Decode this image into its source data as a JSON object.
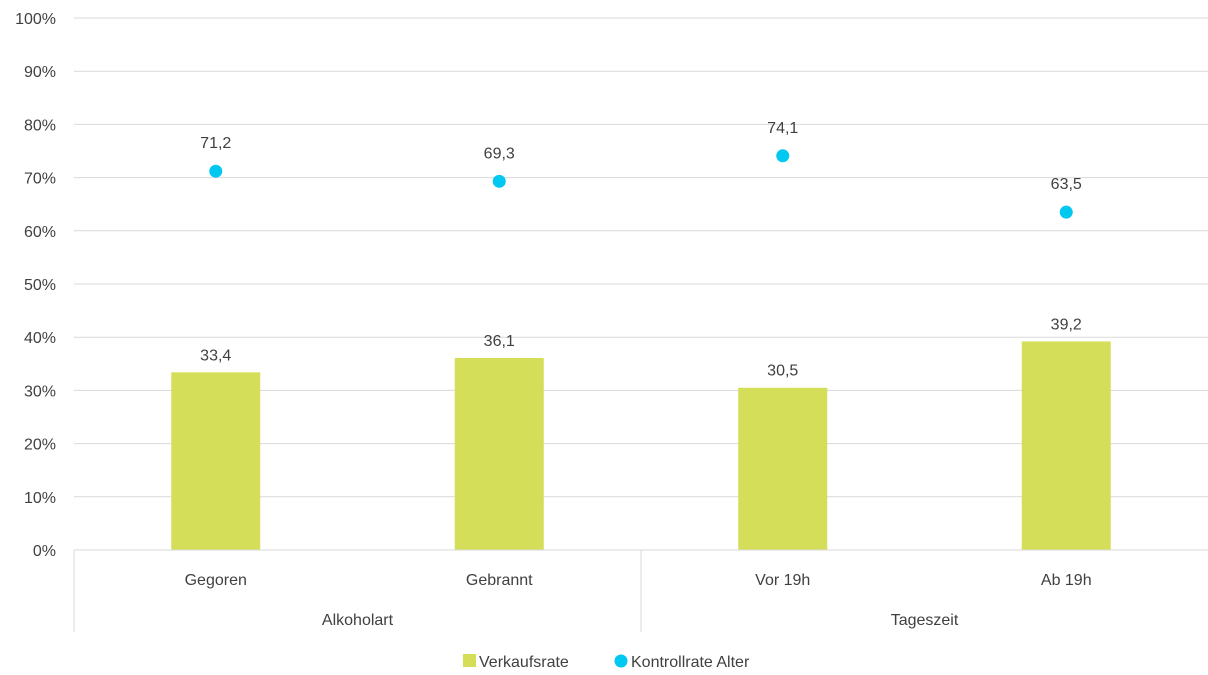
{
  "chart_data": {
    "type": "bar",
    "categories": [
      "Gegoren",
      "Gebrannt",
      "Vor 19h",
      "Ab 19h"
    ],
    "groups": [
      {
        "label": "Alkoholart",
        "categories": [
          "Gegoren",
          "Gebrannt"
        ]
      },
      {
        "label": "Tageszeit",
        "categories": [
          "Vor 19h",
          "Ab 19h"
        ]
      }
    ],
    "series": [
      {
        "name": "Verkaufsrate",
        "type": "bar",
        "color": "#d4de58",
        "values": [
          33.4,
          36.1,
          30.5,
          39.2
        ],
        "labels": [
          "33,4",
          "36,1",
          "30,5",
          "39,2"
        ]
      },
      {
        "name": "Kontrollrate Alter",
        "type": "scatter",
        "color": "#00c8f0",
        "values": [
          71.2,
          69.3,
          74.1,
          63.5
        ],
        "labels": [
          "71,2",
          "69,3",
          "74,1",
          "63,5"
        ]
      }
    ],
    "ylim": [
      0,
      100
    ],
    "yticks": [
      "0%",
      "10%",
      "20%",
      "30%",
      "40%",
      "50%",
      "60%",
      "70%",
      "80%",
      "90%",
      "100%"
    ],
    "grid": true,
    "legend_position": "bottom"
  }
}
